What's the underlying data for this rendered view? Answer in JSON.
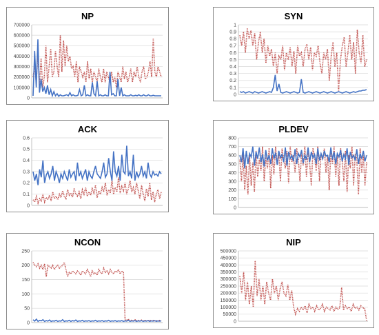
{
  "colors": {
    "solid": "#4472c4",
    "dotted": "#c0504d",
    "grid": "#d9d9d9",
    "axis": "#a6a6a6"
  },
  "chart_data": [
    {
      "key": "np",
      "type": "line",
      "title": "NP",
      "ylim": [
        0,
        700000
      ],
      "yticks": [
        "0",
        "100000",
        "200000",
        "300000",
        "400000",
        "500000",
        "600000",
        "700000"
      ],
      "grid": true,
      "series": [
        {
          "style": "solid",
          "values": [
            20000,
            450000,
            100000,
            560000,
            50000,
            180000,
            60000,
            100000,
            40000,
            120000,
            30000,
            80000,
            20000,
            60000,
            20000,
            40000,
            15000,
            30000,
            20000,
            20000,
            25000,
            30000,
            20000,
            50000,
            20000,
            30000,
            20000,
            20000,
            25000,
            80000,
            20000,
            30000,
            120000,
            20000,
            30000,
            20000,
            20000,
            150000,
            40000,
            20000,
            160000,
            20000,
            30000,
            20000,
            20000,
            30000,
            20000,
            20000,
            250000,
            30000,
            40000,
            20000,
            20000,
            180000,
            20000,
            100000,
            20000,
            30000,
            20000,
            20000,
            20000,
            30000,
            20000,
            20000,
            25000,
            20000,
            30000,
            20000,
            20000,
            30000,
            20000,
            20000,
            30000,
            20000,
            20000,
            25000,
            20000,
            20000,
            20000,
            20000,
            20000
          ]
        },
        {
          "style": "dotted",
          "values": [
            200000,
            300000,
            150000,
            420000,
            120000,
            380000,
            100000,
            200000,
            500000,
            150000,
            300000,
            470000,
            200000,
            250000,
            450000,
            300000,
            200000,
            600000,
            250000,
            550000,
            300000,
            500000,
            350000,
            400000,
            280000,
            300000,
            200000,
            350000,
            150000,
            300000,
            250000,
            200000,
            250000,
            150000,
            350000,
            180000,
            280000,
            150000,
            250000,
            200000,
            150000,
            280000,
            200000,
            150000,
            280000,
            150000,
            250000,
            200000,
            150000,
            250000,
            150000,
            200000,
            100000,
            250000,
            200000,
            150000,
            300000,
            180000,
            250000,
            150000,
            200000,
            280000,
            150000,
            250000,
            200000,
            300000,
            200000,
            150000,
            250000,
            300000,
            180000,
            200000,
            250000,
            350000,
            200000,
            570000,
            250000,
            200000,
            300000,
            250000,
            200000
          ]
        }
      ]
    },
    {
      "key": "syn",
      "type": "line",
      "title": "SYN",
      "ylim": [
        0,
        1
      ],
      "yticks": [
        "0",
        "0.1",
        "0.2",
        "0.3",
        "0.4",
        "0.5",
        "0.6",
        "0.7",
        "0.8",
        "0.9",
        "1"
      ],
      "grid": true,
      "series": [
        {
          "style": "solid",
          "values": [
            0.04,
            0.03,
            0.04,
            0.02,
            0.03,
            0.04,
            0.03,
            0.02,
            0.04,
            0.03,
            0.02,
            0.03,
            0.04,
            0.03,
            0.02,
            0.03,
            0.04,
            0.03,
            0.1,
            0.28,
            0.05,
            0.15,
            0.03,
            0.02,
            0.03,
            0.04,
            0.03,
            0.02,
            0.03,
            0.04,
            0.03,
            0.02,
            0.03,
            0.22,
            0.03,
            0.02,
            0.03,
            0.04,
            0.03,
            0.02,
            0.03,
            0.04,
            0.03,
            0.02,
            0.03,
            0.04,
            0.03,
            0.02,
            0.03,
            0.04,
            0.03,
            0.02,
            0.03,
            0.04,
            0.03,
            0.02,
            0.03,
            0.04,
            0.03,
            0.02,
            0.03,
            0.04,
            0.03,
            0.04,
            0.05,
            0.05,
            0.06,
            0.06,
            0.07
          ]
        },
        {
          "style": "dotted",
          "values": [
            0.85,
            0.7,
            0.9,
            0.6,
            0.95,
            0.8,
            0.92,
            0.7,
            0.88,
            0.5,
            0.75,
            0.9,
            0.6,
            0.8,
            0.45,
            0.7,
            0.55,
            0.65,
            0.4,
            0.6,
            0.3,
            0.55,
            0.5,
            0.7,
            0.35,
            0.6,
            0.5,
            0.68,
            0.4,
            0.62,
            0.3,
            0.7,
            0.55,
            0.6,
            0.4,
            0.65,
            0.72,
            0.5,
            0.68,
            0.35,
            0.6,
            0.55,
            0.7,
            0.45,
            0.3,
            0.6,
            0.5,
            0.65,
            0.2,
            0.55,
            0.75,
            0.4,
            0.6,
            0.05,
            0.5,
            0.7,
            0.82,
            0.4,
            0.6,
            0.85,
            0.5,
            0.75,
            0.3,
            0.93,
            0.6,
            0.45,
            0.85,
            0.4,
            0.5
          ]
        }
      ]
    },
    {
      "key": "ack",
      "type": "line",
      "title": "ACK",
      "ylim": [
        0,
        0.6
      ],
      "yticks": [
        "0",
        "0.1",
        "0.2",
        "0.3",
        "0.4",
        "0.5",
        "0.6"
      ],
      "grid": true,
      "series": [
        {
          "style": "solid",
          "values": [
            0.3,
            0.22,
            0.28,
            0.18,
            0.32,
            0.25,
            0.4,
            0.2,
            0.27,
            0.3,
            0.24,
            0.28,
            0.35,
            0.22,
            0.3,
            0.26,
            0.2,
            0.28,
            0.24,
            0.3,
            0.26,
            0.22,
            0.32,
            0.25,
            0.28,
            0.3,
            0.22,
            0.38,
            0.26,
            0.3,
            0.24,
            0.28,
            0.32,
            0.22,
            0.3,
            0.26,
            0.24,
            0.3,
            0.35,
            0.28,
            0.26,
            0.24,
            0.3,
            0.38,
            0.25,
            0.28,
            0.42,
            0.3,
            0.22,
            0.48,
            0.3,
            0.26,
            0.35,
            0.22,
            0.45,
            0.3,
            0.28,
            0.53,
            0.26,
            0.3,
            0.24,
            0.45,
            0.22,
            0.3,
            0.25,
            0.28,
            0.35,
            0.26,
            0.3,
            0.24,
            0.38,
            0.28,
            0.25,
            0.3,
            0.27,
            0.28,
            0.26,
            0.3,
            0.28
          ]
        },
        {
          "style": "dotted",
          "values": [
            0.05,
            0.03,
            0.08,
            0.02,
            0.06,
            0.04,
            0.1,
            0.03,
            0.07,
            0.05,
            0.09,
            0.04,
            0.12,
            0.06,
            0.08,
            0.05,
            0.1,
            0.07,
            0.13,
            0.08,
            0.06,
            0.14,
            0.09,
            0.11,
            0.07,
            0.15,
            0.1,
            0.08,
            0.12,
            0.06,
            0.14,
            0.1,
            0.16,
            0.08,
            0.12,
            0.09,
            0.15,
            0.11,
            0.18,
            0.07,
            0.13,
            0.1,
            0.16,
            0.12,
            0.2,
            0.09,
            0.14,
            0.11,
            0.22,
            0.1,
            0.16,
            0.12,
            0.25,
            0.11,
            0.17,
            0.13,
            0.2,
            0.1,
            0.15,
            0.22,
            0.12,
            0.16,
            0.1,
            0.2,
            0.13,
            0.06,
            0.18,
            0.1,
            0.04,
            0.15,
            0.08,
            0.2,
            0.05,
            0.12,
            0.03,
            0.1,
            0.14,
            0.06,
            0.12
          ]
        }
      ]
    },
    {
      "key": "pldev",
      "type": "line",
      "title": "PLDEV",
      "ylim": [
        0,
        800
      ],
      "yticks": [
        "0",
        "100",
        "200",
        "300",
        "400",
        "500",
        "600",
        "700",
        "800"
      ],
      "grid": true,
      "series": [
        {
          "style": "solid",
          "values": [
            600,
            520,
            680,
            450,
            650,
            500,
            620,
            580,
            700,
            480,
            640,
            560,
            690,
            520,
            610,
            470,
            660,
            540,
            600,
            500,
            680,
            560,
            630,
            490,
            650,
            570,
            610,
            520,
            690,
            480,
            640,
            560,
            600,
            530,
            670,
            500,
            620,
            580,
            660,
            510,
            600,
            550,
            690,
            520,
            640,
            570,
            610,
            500,
            680,
            540,
            620,
            560,
            650,
            590,
            600,
            520,
            690,
            550,
            640,
            500,
            620,
            580,
            660,
            530,
            610,
            560,
            680,
            490,
            640,
            570,
            600,
            540,
            670,
            500,
            620,
            560,
            650,
            530,
            600
          ]
        },
        {
          "style": "dotted",
          "values": [
            550,
            300,
            620,
            200,
            480,
            150,
            600,
            250,
            520,
            180,
            650,
            350,
            560,
            420,
            700,
            300,
            580,
            450,
            680,
            220,
            600,
            380,
            700,
            500,
            620,
            300,
            680,
            550,
            450,
            650,
            280,
            700,
            520,
            600,
            400,
            680,
            550,
            300,
            620,
            480,
            700,
            350,
            650,
            500,
            250,
            680,
            580,
            420,
            700,
            300,
            620,
            550,
            680,
            400,
            600,
            200,
            650,
            500,
            700,
            350,
            620,
            250,
            680,
            550,
            300,
            650,
            180,
            600,
            450,
            700,
            250,
            620,
            550,
            150,
            680,
            400,
            600,
            250,
            520
          ]
        }
      ]
    },
    {
      "key": "ncon",
      "type": "line",
      "title": "NCON",
      "ylim": [
        0,
        250
      ],
      "yticks": [
        "0",
        "50",
        "100",
        "150",
        "200",
        "250"
      ],
      "grid": true,
      "series": [
        {
          "style": "solid",
          "values": [
            10,
            5,
            12,
            4,
            8,
            6,
            10,
            4,
            7,
            5,
            9,
            4,
            6,
            5,
            8,
            4,
            6,
            5,
            10,
            4,
            6,
            5,
            8,
            4,
            7,
            5,
            9,
            4,
            6,
            5,
            8,
            4,
            6,
            5,
            7,
            4,
            6,
            5,
            8,
            4,
            6,
            5,
            7,
            4,
            6,
            5,
            8,
            4,
            6,
            5,
            7,
            4,
            6,
            5,
            7,
            4,
            6,
            5,
            8,
            4,
            6,
            5,
            7,
            4,
            6,
            5,
            7,
            4,
            6,
            5,
            7,
            4,
            6,
            5,
            7,
            4,
            6,
            5,
            6
          ]
        },
        {
          "style": "dotted",
          "values": [
            210,
            200,
            195,
            205,
            190,
            200,
            185,
            205,
            160,
            200,
            195,
            190,
            200,
            185,
            195,
            200,
            190,
            195,
            200,
            210,
            185,
            160,
            175,
            170,
            180,
            175,
            170,
            180,
            175,
            165,
            180,
            175,
            170,
            185,
            175,
            160,
            180,
            170,
            175,
            165,
            185,
            175,
            170,
            190,
            175,
            180,
            170,
            185,
            175,
            170,
            180,
            175,
            185,
            170,
            180,
            175,
            10,
            8,
            12,
            6,
            9,
            5,
            10,
            7,
            8,
            6,
            9,
            5,
            8,
            7,
            6,
            9,
            5,
            8,
            6,
            7,
            5,
            8,
            6
          ]
        }
      ]
    },
    {
      "key": "nip",
      "type": "line",
      "title": "NIP",
      "ylim": [
        0,
        500000
      ],
      "yticks": [
        "0",
        "50000",
        "100000",
        "150000",
        "200000",
        "250000",
        "300000",
        "350000",
        "400000",
        "450000",
        "500000"
      ],
      "grid": true,
      "series": [
        {
          "style": "dotted",
          "values": [
            320000,
            200000,
            350000,
            150000,
            280000,
            120000,
            250000,
            100000,
            430000,
            180000,
            300000,
            150000,
            250000,
            120000,
            280000,
            200000,
            150000,
            300000,
            200000,
            250000,
            150000,
            230000,
            280000,
            200000,
            180000,
            260000,
            150000,
            220000,
            100000,
            50000,
            90000,
            70000,
            100000,
            80000,
            110000,
            60000,
            120000,
            90000,
            100000,
            70000,
            110000,
            80000,
            90000,
            120000,
            70000,
            100000,
            90000,
            80000,
            110000,
            70000,
            100000,
            85000,
            95000,
            240000,
            80000,
            110000,
            90000,
            100000,
            70000,
            120000,
            90000,
            100000,
            80000,
            110000,
            95000,
            90000,
            5000
          ]
        }
      ]
    }
  ]
}
